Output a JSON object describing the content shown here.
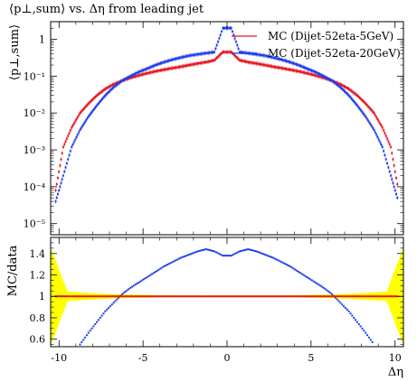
{
  "title": "⟨p⊥,sum⟩ vs. Δη from leading jet",
  "chart_data": [
    {
      "type": "scatter",
      "panel": "main",
      "ylabel": "⟨p⊥,sum⟩",
      "yscale": "log",
      "ylim": [
        5e-06,
        3
      ],
      "y_ticks": [
        {
          "value": 1e-05,
          "label": "10⁻⁵"
        },
        {
          "value": 0.0001,
          "label": "10⁻⁴"
        },
        {
          "value": 0.001,
          "label": "10⁻³"
        },
        {
          "value": 0.01,
          "label": "10⁻²"
        },
        {
          "value": 0.1,
          "label": "10⁻¹"
        },
        {
          "value": 1,
          "label": "1"
        }
      ],
      "xlim": [
        -10.5,
        10.5
      ],
      "legend_position": "top-right",
      "series": [
        {
          "name": "MC (Dijet-52eta-5GeV)",
          "color": "#e8141e",
          "x": [
            -10.2,
            -9.75,
            -9.25,
            -8.75,
            -8.25,
            -7.75,
            -7.25,
            -6.75,
            -6.25,
            -5.75,
            -5.25,
            -4.75,
            -4.25,
            -3.75,
            -3.25,
            -2.75,
            -2.25,
            -1.75,
            -1.25,
            -0.75,
            -0.25,
            0.25,
            0.75,
            1.25,
            1.75,
            2.25,
            2.75,
            3.25,
            3.75,
            4.25,
            4.75,
            5.25,
            5.75,
            6.25,
            6.75,
            7.25,
            7.75,
            8.25,
            8.75,
            9.25,
            9.75,
            10.2
          ],
          "y": [
            8e-05,
            0.0012,
            0.004,
            0.01,
            0.018,
            0.03,
            0.045,
            0.06,
            0.075,
            0.09,
            0.105,
            0.12,
            0.135,
            0.15,
            0.165,
            0.18,
            0.2,
            0.22,
            0.24,
            0.27,
            0.45,
            0.45,
            0.27,
            0.24,
            0.22,
            0.2,
            0.18,
            0.165,
            0.15,
            0.135,
            0.12,
            0.105,
            0.09,
            0.075,
            0.06,
            0.045,
            0.03,
            0.018,
            0.01,
            0.004,
            0.0012,
            8e-05
          ]
        },
        {
          "name": "MC (Dijet-52eta-20GeV)",
          "color": "#1e3cf0",
          "x": [
            -10.2,
            -9.75,
            -9.25,
            -8.75,
            -8.25,
            -7.75,
            -7.25,
            -6.75,
            -6.25,
            -5.75,
            -5.25,
            -4.75,
            -4.25,
            -3.75,
            -3.25,
            -2.75,
            -2.25,
            -1.75,
            -1.25,
            -0.75,
            -0.25,
            0.25,
            0.75,
            1.25,
            1.75,
            2.25,
            2.75,
            3.25,
            3.75,
            4.25,
            4.75,
            5.25,
            5.75,
            6.25,
            6.75,
            7.25,
            7.75,
            8.25,
            8.75,
            9.25,
            9.75,
            10.2
          ],
          "y": [
            4e-05,
            0.0002,
            0.0012,
            0.0035,
            0.008,
            0.016,
            0.03,
            0.05,
            0.075,
            0.1,
            0.13,
            0.16,
            0.2,
            0.24,
            0.28,
            0.32,
            0.36,
            0.39,
            0.42,
            0.45,
            2.0,
            2.0,
            0.45,
            0.42,
            0.39,
            0.36,
            0.32,
            0.28,
            0.24,
            0.2,
            0.16,
            0.13,
            0.1,
            0.075,
            0.05,
            0.03,
            0.016,
            0.008,
            0.0035,
            0.0012,
            0.0002,
            4e-05
          ]
        }
      ]
    },
    {
      "type": "scatter",
      "panel": "ratio",
      "ylabel": "MC/data",
      "xlabel": "Δη",
      "ylim": [
        0.53,
        1.55
      ],
      "y_ticks": [
        {
          "value": 0.6,
          "label": "0.6"
        },
        {
          "value": 0.8,
          "label": "0.8"
        },
        {
          "value": 1,
          "label": "1"
        },
        {
          "value": 1.2,
          "label": "1.2"
        },
        {
          "value": 1.4,
          "label": "1.4"
        }
      ],
      "xlim": [
        -10.5,
        10.5
      ],
      "x_ticks": [
        {
          "value": -10,
          "label": "-10"
        },
        {
          "value": -5,
          "label": "-5"
        },
        {
          "value": 0,
          "label": "0"
        },
        {
          "value": 5,
          "label": "5"
        },
        {
          "value": 10,
          "label": "10"
        }
      ],
      "band_color": "#ffff00",
      "reference_line": 1,
      "series": [
        {
          "name": "MC (Dijet-52eta-20GeV)",
          "color": "#1e3cf0",
          "x": [
            -8.75,
            -8.25,
            -7.75,
            -7.25,
            -6.75,
            -6.25,
            -5.75,
            -5.25,
            -4.75,
            -4.25,
            -3.75,
            -3.25,
            -2.75,
            -2.25,
            -1.75,
            -1.25,
            -0.75,
            -0.25,
            0.25,
            0.75,
            1.25,
            1.75,
            2.25,
            2.75,
            3.25,
            3.75,
            4.25,
            4.75,
            5.25,
            5.75,
            6.25,
            6.75,
            7.25,
            7.75,
            8.25,
            8.75
          ],
          "y": [
            0.55,
            0.66,
            0.76,
            0.86,
            0.94,
            1.02,
            1.08,
            1.13,
            1.18,
            1.23,
            1.28,
            1.32,
            1.36,
            1.39,
            1.42,
            1.44,
            1.42,
            1.38,
            1.38,
            1.42,
            1.44,
            1.42,
            1.39,
            1.36,
            1.32,
            1.28,
            1.23,
            1.18,
            1.13,
            1.08,
            1.02,
            0.94,
            0.86,
            0.76,
            0.66,
            0.55
          ]
        },
        {
          "name": "MC (Dijet-52eta-5GeV)",
          "color": "#e8141e",
          "x": [
            -10.2,
            -9.75,
            -9.25,
            -8.75,
            -8.25,
            -7.75,
            -7.25,
            -6.75,
            -6.25,
            -5.75,
            -5.25,
            -4.75,
            -4.25,
            -3.75,
            -3.25,
            -2.75,
            -2.25,
            -1.75,
            -1.25,
            -0.75,
            -0.25,
            0.25,
            0.75,
            1.25,
            1.75,
            2.25,
            2.75,
            3.25,
            3.75,
            4.25,
            4.75,
            5.25,
            5.75,
            6.25,
            6.75,
            7.25,
            7.75,
            8.25,
            8.75,
            9.25,
            9.75,
            10.2
          ],
          "y": [
            1,
            1,
            1,
            1,
            1,
            1,
            1,
            1,
            1,
            1,
            1,
            1,
            1,
            1,
            1,
            1,
            1,
            1,
            1,
            1,
            1,
            1,
            1,
            1,
            1,
            1,
            1,
            1,
            1,
            1,
            1,
            1,
            1,
            1,
            1,
            1,
            1,
            1,
            1,
            1,
            1,
            1
          ]
        }
      ]
    }
  ]
}
